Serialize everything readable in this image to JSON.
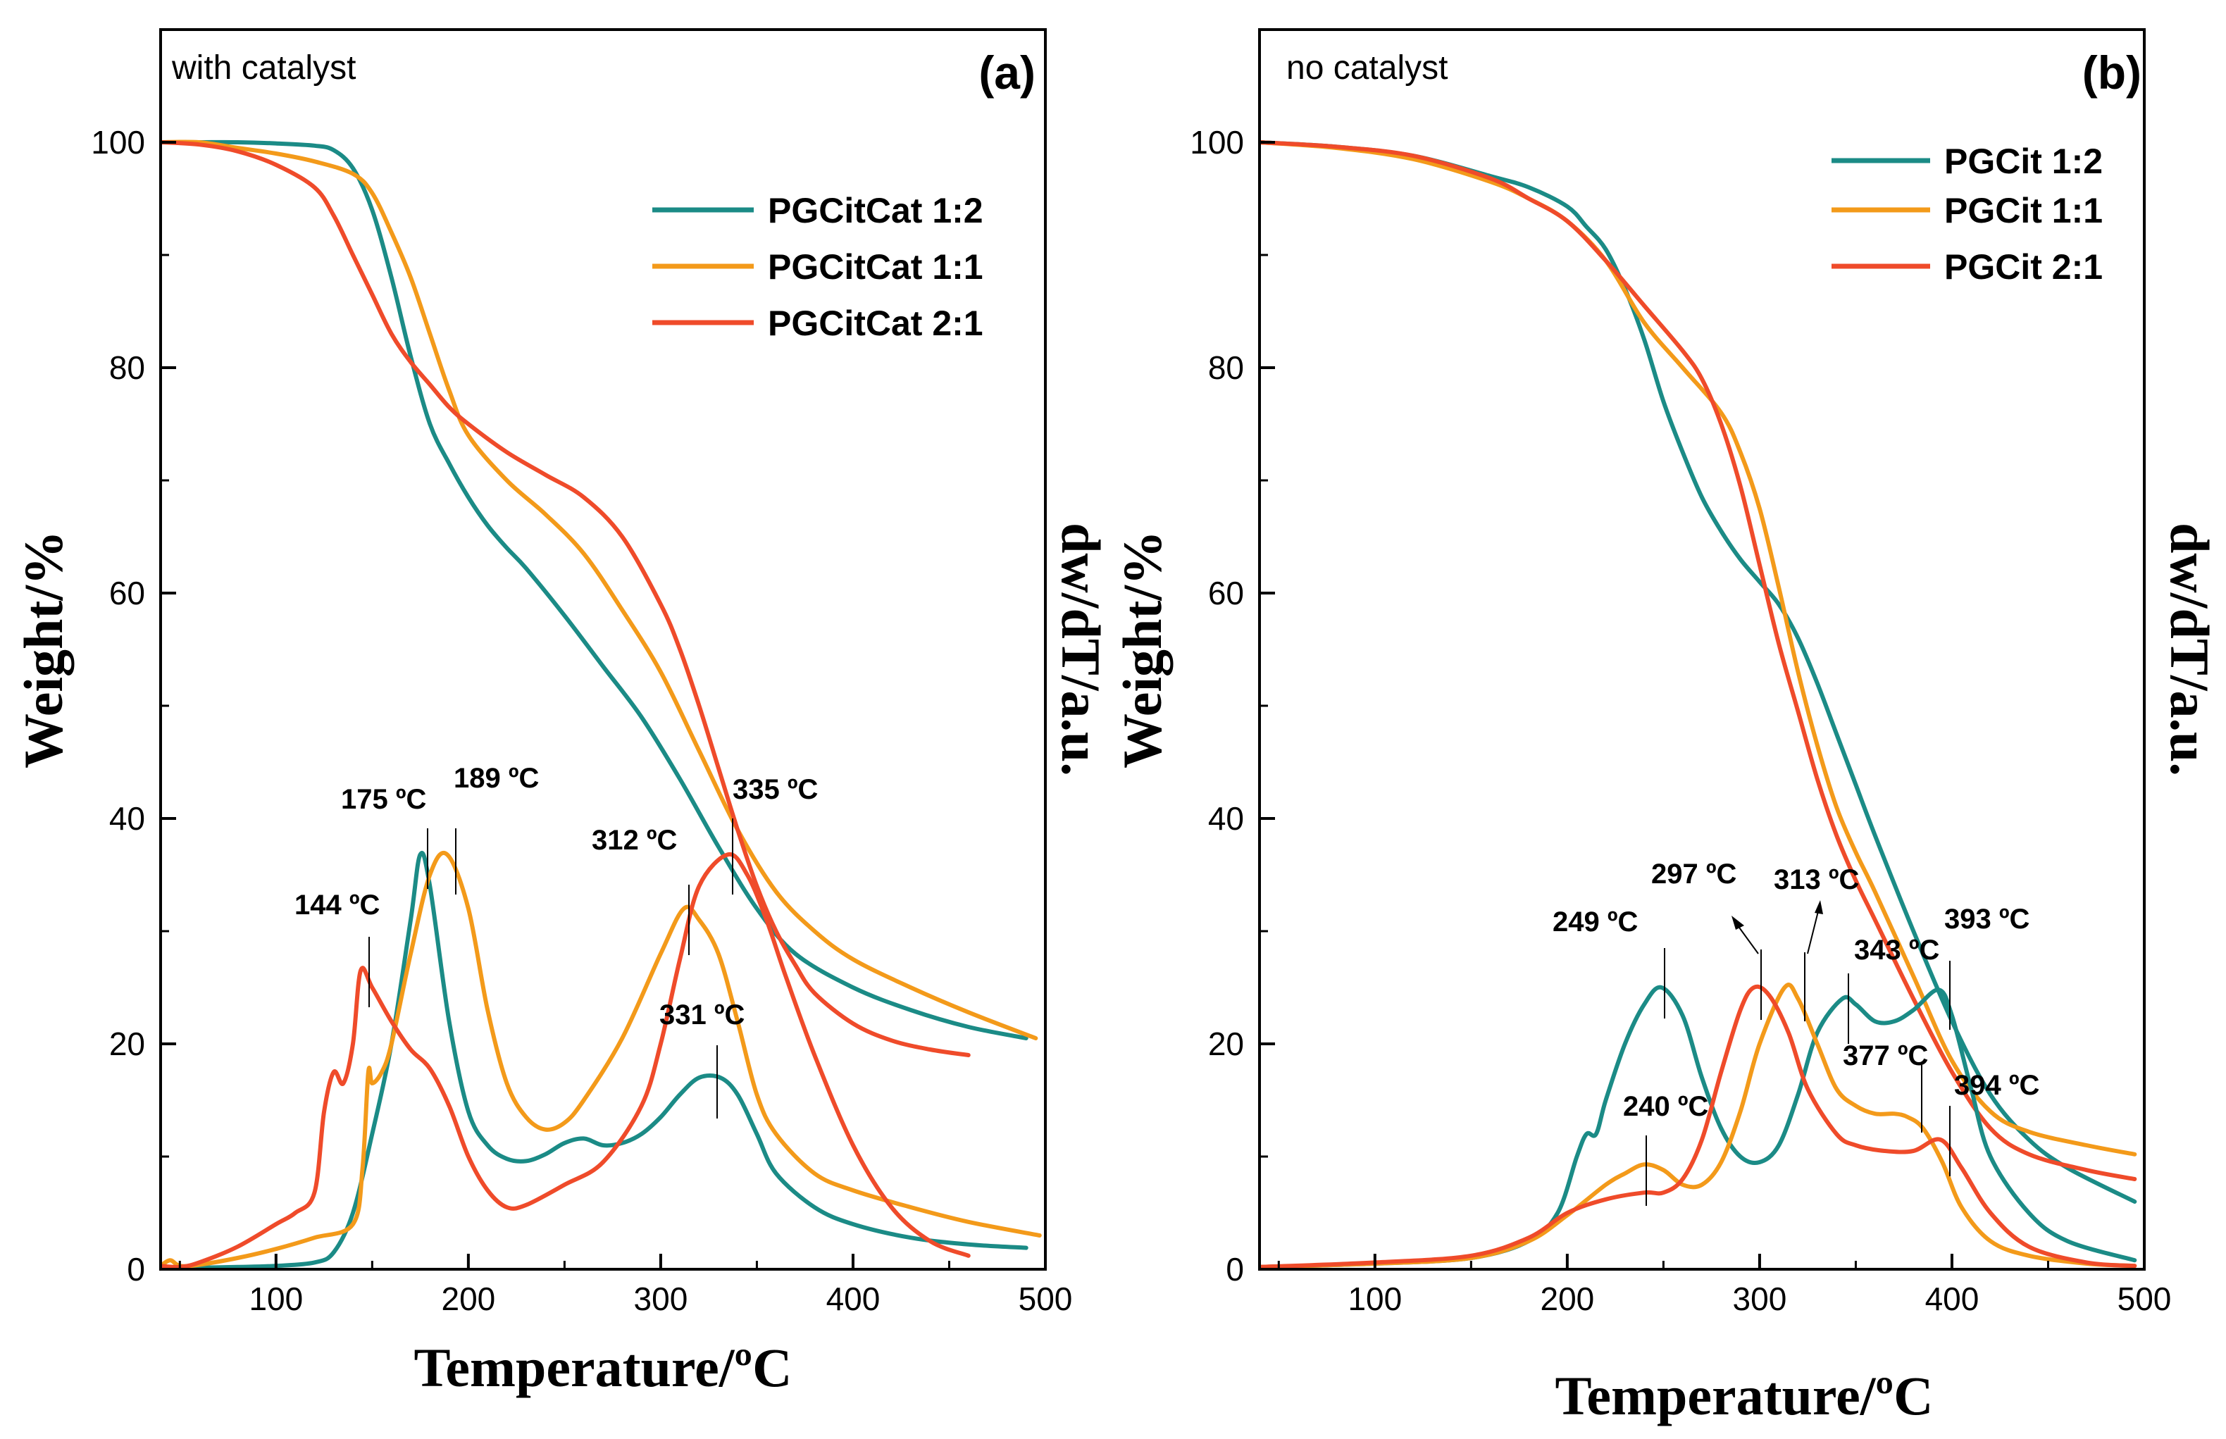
{
  "chart_data": [
    {
      "type": "line",
      "panel_label": "(a)",
      "condition": "with catalyst",
      "xlabel": "Temperature/ºC",
      "ylabel": "Weight/%",
      "ylabel_right": "dw/dT/a.u.",
      "xlim": [
        40,
        500
      ],
      "ylim": [
        0,
        110
      ],
      "xticks": [
        100,
        200,
        300,
        400,
        500
      ],
      "yticks": [
        0,
        20,
        40,
        60,
        80,
        100
      ],
      "legend": [
        "PGCitCat 1:2",
        "PGCitCat 1:1",
        "PGCitCat 2:1"
      ],
      "series": [
        {
          "name": "PGCitCat 1:2",
          "kind": "TG",
          "color": "#1b8b86",
          "x": [
            40,
            60,
            80,
            100,
            120,
            130,
            140,
            150,
            160,
            170,
            180,
            190,
            200,
            210,
            220,
            230,
            250,
            270,
            290,
            310,
            330,
            350,
            370,
            400,
            430,
            460,
            490
          ],
          "y": [
            100,
            100,
            100,
            99.9,
            99.7,
            99.3,
            97.7,
            94,
            88,
            81,
            75,
            71.5,
            68.5,
            66,
            64,
            62.2,
            58,
            53.5,
            49,
            43.5,
            37.5,
            32,
            28,
            25,
            23,
            21.5,
            20.5
          ]
        },
        {
          "name": "PGCitCat 1:1",
          "kind": "TG",
          "color": "#f39a1a",
          "x": [
            40,
            60,
            80,
            100,
            120,
            140,
            150,
            160,
            170,
            180,
            190,
            200,
            220,
            240,
            260,
            280,
            300,
            320,
            340,
            360,
            380,
            400,
            430,
            460,
            495
          ],
          "y": [
            100,
            100,
            99.5,
            99,
            98.3,
            97.2,
            95.5,
            92,
            88,
            83,
            78,
            74,
            70,
            67,
            63.5,
            58.5,
            53,
            46,
            39,
            33.5,
            30,
            27.5,
            25,
            22.8,
            20.5
          ]
        },
        {
          "name": "PGCitCat 2:1",
          "kind": "TG",
          "color": "#ef4b2a",
          "x": [
            40,
            60,
            80,
            100,
            120,
            130,
            140,
            150,
            160,
            170,
            180,
            190,
            200,
            220,
            240,
            260,
            280,
            300,
            310,
            320,
            330,
            340,
            350,
            360,
            370,
            380,
            400,
            420,
            440,
            460
          ],
          "y": [
            100,
            99.8,
            99.2,
            98,
            96,
            93.5,
            90,
            86.5,
            83,
            80.5,
            78.5,
            76.5,
            75,
            72.5,
            70.5,
            68.5,
            65,
            59,
            55,
            50,
            44.5,
            39,
            34,
            30,
            27,
            24.5,
            21.8,
            20.3,
            19.5,
            19
          ]
        },
        {
          "name": "PGCitCat 1:2",
          "kind": "DTG",
          "color": "#1b8b86",
          "x": [
            50,
            80,
            100,
            120,
            130,
            140,
            150,
            160,
            170,
            175,
            180,
            190,
            200,
            210,
            220,
            230,
            240,
            250,
            260,
            270,
            280,
            290,
            300,
            310,
            320,
            331,
            340,
            350,
            360,
            380,
            400,
            430,
            460,
            490
          ],
          "y": [
            0.1,
            0.2,
            0.3,
            0.6,
            1.5,
            5,
            12,
            20,
            31,
            36.8,
            34,
            22,
            14,
            11,
            9.8,
            9.6,
            10.2,
            11.2,
            11.6,
            11,
            11.2,
            12,
            13.5,
            15.5,
            17,
            17,
            15.5,
            12,
            8.5,
            5.5,
            4,
            2.8,
            2.2,
            1.9
          ]
        },
        {
          "name": "PGCitCat 1:1",
          "kind": "DTG",
          "color": "#f39a1a",
          "x": [
            40,
            45,
            50,
            60,
            80,
            100,
            120,
            140,
            145,
            148,
            150,
            155,
            160,
            170,
            180,
            189,
            200,
            210,
            220,
            230,
            240,
            250,
            260,
            280,
            300,
            312,
            320,
            330,
            340,
            350,
            360,
            380,
            400,
            430,
            460,
            497
          ],
          "y": [
            0.3,
            0.8,
            0.3,
            0.4,
            1,
            1.8,
            2.8,
            4,
            9,
            17.5,
            16.5,
            17.5,
            20,
            28,
            35,
            36.8,
            32,
            23,
            16.5,
            13.5,
            12.4,
            13,
            15,
            20.5,
            28,
            32,
            31,
            28,
            22,
            15.5,
            12,
            8.5,
            7,
            5.5,
            4.2,
            3
          ]
        },
        {
          "name": "PGCitCat 2:1",
          "kind": "DTG",
          "color": "#ef4b2a",
          "x": [
            40,
            50,
            60,
            80,
            100,
            110,
            120,
            125,
            130,
            135,
            140,
            144,
            150,
            160,
            170,
            180,
            190,
            200,
            210,
            220,
            230,
            250,
            270,
            290,
            300,
            310,
            320,
            335,
            345,
            355,
            365,
            380,
            400,
            420,
            440,
            460
          ],
          "y": [
            0.3,
            0.2,
            0.6,
            2,
            4,
            5,
            6.8,
            14,
            17.5,
            16.5,
            20,
            26.5,
            25,
            22,
            19.5,
            17.8,
            14.5,
            10,
            7,
            5.5,
            5.7,
            7.5,
            9.5,
            14.5,
            20,
            27.5,
            34,
            36.8,
            35,
            31,
            26,
            19,
            11,
            5.5,
            2.5,
            1.2
          ]
        }
      ],
      "annotations": [
        "144 ºC",
        "175 ºC",
        "189 ºC",
        "312 ºC",
        "335 ºC",
        "331 ºC"
      ]
    },
    {
      "type": "line",
      "panel_label": "(b)",
      "condition": "no catalyst",
      "xlabel": "Temperature/ºC",
      "ylabel": "Weight/%",
      "ylabel_right": "dw/dT/a.u.",
      "xlim": [
        40,
        500
      ],
      "ylim": [
        0,
        110
      ],
      "xticks": [
        100,
        200,
        300,
        400,
        500
      ],
      "yticks": [
        0,
        20,
        40,
        60,
        80,
        100
      ],
      "legend": [
        "PGCit 1:2",
        "PGCit 1:1",
        "PGCit 2:1"
      ],
      "series": [
        {
          "name": "PGCit 1:2",
          "kind": "TG",
          "color": "#1b8b86",
          "x": [
            40,
            80,
            120,
            160,
            180,
            200,
            210,
            220,
            230,
            240,
            250,
            260,
            270,
            280,
            290,
            300,
            310,
            320,
            330,
            340,
            350,
            360,
            380,
            400,
            420,
            440,
            460,
            495
          ],
          "y": [
            100,
            99.6,
            98.8,
            97,
            96,
            94.3,
            92.5,
            90.5,
            87,
            82.5,
            77,
            72.5,
            68.5,
            65.5,
            63,
            61,
            59,
            56,
            52,
            47.5,
            43,
            38.5,
            30,
            22,
            15.5,
            11.5,
            9,
            6
          ]
        },
        {
          "name": "PGCit 1:1",
          "kind": "TG",
          "color": "#f39a1a",
          "x": [
            40,
            80,
            120,
            160,
            180,
            200,
            220,
            240,
            260,
            280,
            290,
            300,
            310,
            320,
            330,
            340,
            350,
            360,
            380,
            400,
            420,
            440,
            470,
            495
          ],
          "y": [
            100,
            99.5,
            98.5,
            96.5,
            95,
            93,
            89.5,
            84,
            80,
            76,
            72.5,
            67.5,
            60.5,
            53,
            46.5,
            41,
            37,
            33.5,
            26,
            18.5,
            14,
            12.2,
            11,
            10.2
          ]
        },
        {
          "name": "PGCit 2:1",
          "kind": "TG",
          "color": "#ef4b2a",
          "x": [
            40,
            80,
            120,
            160,
            180,
            200,
            220,
            240,
            260,
            270,
            280,
            290,
            300,
            310,
            320,
            330,
            340,
            350,
            360,
            380,
            400,
            420,
            440,
            470,
            495
          ],
          "y": [
            100,
            99.6,
            98.8,
            96.8,
            95,
            93,
            89.5,
            85.5,
            81.5,
            79,
            75,
            69.5,
            62.5,
            55.5,
            49.5,
            43.5,
            38.5,
            34.5,
            31,
            24,
            17.5,
            12.5,
            10.2,
            8.8,
            8
          ]
        },
        {
          "name": "PGCit 1:2",
          "kind": "DTG",
          "color": "#1b8b86",
          "x": [
            40,
            100,
            150,
            180,
            195,
            205,
            210,
            215,
            220,
            230,
            240,
            249,
            260,
            270,
            280,
            290,
            300,
            310,
            320,
            330,
            343,
            350,
            360,
            370,
            380,
            393,
            400,
            410,
            420,
            440,
            460,
            495
          ],
          "y": [
            0.2,
            0.5,
            1,
            2.5,
            5,
            10,
            12,
            12,
            15,
            20,
            23.5,
            25,
            22.5,
            17,
            12.5,
            10,
            9.5,
            11,
            15.5,
            21,
            24,
            23.5,
            22,
            22,
            23,
            24.8,
            22.5,
            16,
            10,
            5,
            2.5,
            0.8
          ]
        },
        {
          "name": "PGCit 1:1",
          "kind": "DTG",
          "color": "#f39a1a",
          "x": [
            40,
            100,
            150,
            180,
            200,
            220,
            230,
            240,
            250,
            260,
            270,
            280,
            290,
            300,
            313,
            320,
            330,
            340,
            350,
            360,
            370,
            377,
            385,
            395,
            405,
            420,
            440,
            470,
            495
          ],
          "y": [
            0.2,
            0.5,
            1,
            2.5,
            4.8,
            7.5,
            8.5,
            9.3,
            8.8,
            7.5,
            7.5,
            9.5,
            14,
            20,
            25,
            24,
            20,
            16,
            14.5,
            13.8,
            13.8,
            13.5,
            12.5,
            9.5,
            5.5,
            2.5,
            1.2,
            0.5,
            0.3
          ]
        },
        {
          "name": "PGCit 2:1",
          "kind": "DTG",
          "color": "#ef4b2a",
          "x": [
            40,
            100,
            150,
            180,
            200,
            220,
            240,
            250,
            260,
            270,
            280,
            290,
            297,
            305,
            315,
            325,
            340,
            350,
            365,
            380,
            394,
            405,
            420,
            440,
            470,
            495
          ],
          "y": [
            0.2,
            0.6,
            1.2,
            2.8,
            5,
            6.2,
            6.8,
            6.8,
            8,
            11.5,
            17.5,
            23,
            25,
            24.3,
            21,
            16,
            12,
            11,
            10.5,
            10.5,
            11.5,
            9,
            5,
            2,
            0.6,
            0.3
          ]
        }
      ],
      "annotations": [
        "240 ºC",
        "249 ºC",
        "297 ºC",
        "313 ºC",
        "343 ºC",
        "393 ºC",
        "377 ºC",
        "394 ºC"
      ]
    }
  ]
}
